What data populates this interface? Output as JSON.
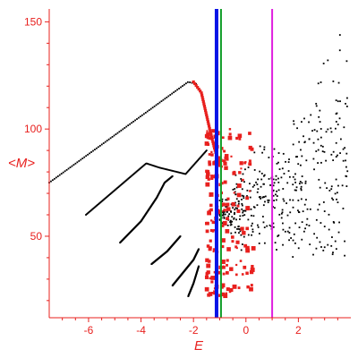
{
  "chart_data": {
    "type": "scatter",
    "title": "",
    "xlabel": "E",
    "ylabel": "<M>",
    "xlim": [
      -7.5,
      4
    ],
    "ylim": [
      12,
      156
    ],
    "xticks": [
      -6,
      -4,
      -2,
      0,
      2
    ],
    "yticks": [
      50,
      100,
      150
    ],
    "grid": false,
    "legend": "none",
    "colors": {
      "axis": "#e8201e",
      "branch": "#000000",
      "red_points": "#e8201e",
      "cloud": "#000000",
      "blue_line": "#0a14e6",
      "green_line": "#129e2a",
      "magenta_line": "#e01ee0"
    },
    "branches": [
      {
        "points": [
          [
            -7.5,
            75
          ],
          [
            -2.2,
            122
          ],
          [
            -1.9,
            121
          ]
        ]
      },
      {
        "points": [
          [
            -6.1,
            60
          ],
          [
            -3.8,
            84
          ],
          [
            -3.3,
            82
          ],
          [
            -2.3,
            79
          ],
          [
            -1.5,
            90
          ]
        ]
      },
      {
        "points": [
          [
            -4.8,
            47
          ],
          [
            -4.0,
            57
          ],
          [
            -3.4,
            68
          ],
          [
            -3.1,
            75
          ],
          [
            -2.8,
            78
          ]
        ]
      },
      {
        "points": [
          [
            -3.6,
            37
          ],
          [
            -3.0,
            43
          ],
          [
            -2.5,
            50
          ]
        ]
      },
      {
        "points": [
          [
            -2.8,
            27
          ],
          [
            -2.4,
            33
          ],
          [
            -2.0,
            39
          ],
          [
            -1.8,
            44
          ]
        ]
      },
      {
        "points": [
          [
            -2.2,
            22
          ],
          [
            -2.0,
            28
          ],
          [
            -1.8,
            36
          ]
        ]
      }
    ],
    "red_curve": [
      [
        -2.0,
        122
      ],
      [
        -1.7,
        117
      ],
      [
        -1.4,
        101
      ],
      [
        -1.2,
        91
      ],
      [
        -1.0,
        83
      ]
    ],
    "red_band": {
      "x": [
        -1.5,
        0.3
      ],
      "y": [
        22,
        100
      ]
    },
    "cloud": {
      "x": [
        -1.0,
        3.9
      ],
      "y": [
        40,
        156
      ]
    },
    "vertical_lines": [
      {
        "name": "blue",
        "x": -1.12
      },
      {
        "name": "green",
        "x": -0.95
      },
      {
        "name": "magenta",
        "x": 1.0
      }
    ]
  }
}
